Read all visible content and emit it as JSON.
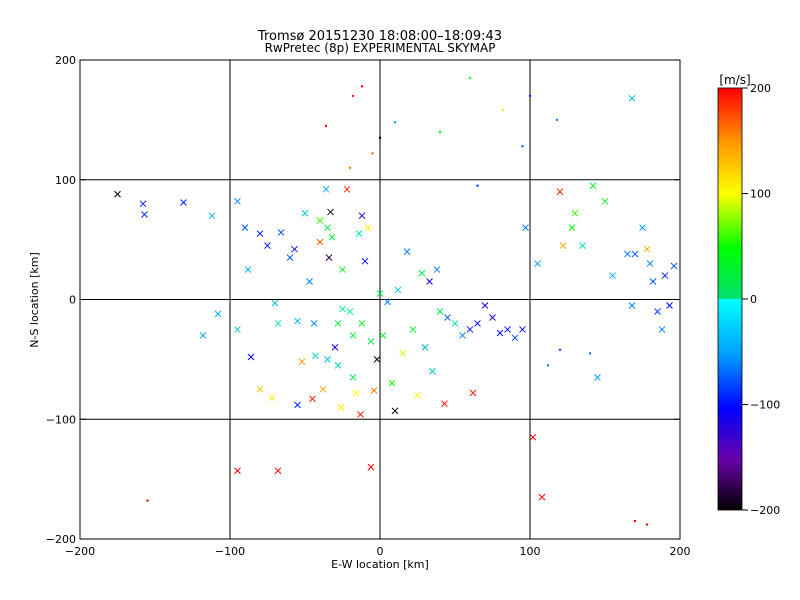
{
  "chart_data": {
    "type": "scatter",
    "title": "Tromsø 20151230 18:08:00–18:09:43",
    "subtitle": "RwPretec (8p) EXPERIMENTAL SKYMAP",
    "xlabel": "E-W location [km]",
    "ylabel": "N-S location [km]",
    "xlim": [
      -200,
      200
    ],
    "ylim": [
      -200,
      200
    ],
    "x_ticks": [
      -200,
      -100,
      0,
      100,
      200
    ],
    "y_ticks": [
      -200,
      -100,
      0,
      100,
      200
    ],
    "grid": true,
    "colorbar": {
      "unit_label": "[m/s]",
      "range": [
        -200,
        200
      ],
      "ticks": [
        200,
        100,
        0,
        -100,
        -200
      ]
    },
    "series": [
      {
        "marker": "x",
        "points": [
          [
            -175,
            88,
            -200
          ],
          [
            -158,
            80,
            -90
          ],
          [
            -157,
            71,
            -85
          ],
          [
            -131,
            81,
            -90
          ],
          [
            -112,
            70,
            -40
          ],
          [
            -95,
            82,
            -60
          ],
          [
            -90,
            60,
            -75
          ],
          [
            -88,
            25,
            -50
          ],
          [
            -80,
            55,
            -85
          ],
          [
            -75,
            45,
            -90
          ],
          [
            -70,
            -3,
            -30
          ],
          [
            -68,
            -20,
            -10
          ],
          [
            -66,
            56,
            -80
          ],
          [
            -60,
            35,
            -70
          ],
          [
            -57,
            42,
            -95
          ],
          [
            -55,
            -18,
            -40
          ],
          [
            -55,
            -88,
            -90
          ],
          [
            -52,
            -52,
            150
          ],
          [
            -50,
            72,
            -30
          ],
          [
            -47,
            15,
            -60
          ],
          [
            -45,
            -83,
            190
          ],
          [
            -43,
            -47,
            -20
          ],
          [
            -40,
            66,
            60
          ],
          [
            -40,
            48,
            170
          ],
          [
            -38,
            -75,
            150
          ],
          [
            -36,
            92,
            -45
          ],
          [
            -35,
            60,
            10
          ],
          [
            -34,
            35,
            -180
          ],
          [
            -33,
            73,
            -190
          ],
          [
            -32,
            52,
            20
          ],
          [
            -30,
            -40,
            -110
          ],
          [
            -28,
            -20,
            20
          ],
          [
            -26,
            -90,
            110
          ],
          [
            -25,
            25,
            30
          ],
          [
            -22,
            92,
            190
          ],
          [
            -20,
            -10,
            0
          ],
          [
            -18,
            -65,
            20
          ],
          [
            -16,
            -78,
            100
          ],
          [
            -14,
            55,
            -10
          ],
          [
            -13,
            -96,
            190
          ],
          [
            -12,
            70,
            -100
          ],
          [
            -10,
            32,
            -100
          ],
          [
            -8,
            60,
            110
          ],
          [
            -6,
            -140,
            200
          ],
          [
            -4,
            -76,
            160
          ],
          [
            -2,
            -50,
            -190
          ],
          [
            0,
            5,
            10
          ],
          [
            2,
            -30,
            30
          ],
          [
            5,
            -2,
            -60
          ],
          [
            8,
            -70,
            50
          ],
          [
            10,
            -93,
            -200
          ],
          [
            12,
            8,
            -30
          ],
          [
            15,
            -45,
            90
          ],
          [
            18,
            40,
            -60
          ],
          [
            22,
            -25,
            30
          ],
          [
            25,
            -80,
            100
          ],
          [
            28,
            22,
            20
          ],
          [
            30,
            -40,
            -40
          ],
          [
            33,
            15,
            -110
          ],
          [
            35,
            -60,
            -30
          ],
          [
            38,
            25,
            -60
          ],
          [
            40,
            -10,
            10
          ],
          [
            43,
            -87,
            200
          ],
          [
            45,
            -15,
            -70
          ],
          [
            50,
            -20,
            -20
          ],
          [
            55,
            -30,
            -60
          ],
          [
            60,
            -25,
            -90
          ],
          [
            62,
            -78,
            190
          ],
          [
            65,
            -20,
            -100
          ],
          [
            70,
            -5,
            -110
          ],
          [
            75,
            -15,
            -120
          ],
          [
            80,
            -28,
            -95
          ],
          [
            85,
            -25,
            -90
          ],
          [
            90,
            -32,
            -80
          ],
          [
            95,
            -25,
            -110
          ],
          [
            97,
            60,
            -60
          ],
          [
            102,
            -115,
            200
          ],
          [
            105,
            30,
            -50
          ],
          [
            108,
            -165,
            200
          ],
          [
            120,
            90,
            190
          ],
          [
            122,
            45,
            140
          ],
          [
            128,
            60,
            40
          ],
          [
            130,
            72,
            60
          ],
          [
            135,
            45,
            -20
          ],
          [
            142,
            95,
            40
          ],
          [
            145,
            -65,
            -50
          ],
          [
            150,
            82,
            30
          ],
          [
            155,
            20,
            -40
          ],
          [
            165,
            38,
            -60
          ],
          [
            168,
            168,
            -40
          ],
          [
            168,
            -5,
            -60
          ],
          [
            170,
            38,
            -70
          ],
          [
            175,
            60,
            -50
          ],
          [
            178,
            42,
            140
          ],
          [
            180,
            30,
            -60
          ],
          [
            182,
            15,
            -70
          ],
          [
            185,
            -10,
            -80
          ],
          [
            188,
            -25,
            -60
          ],
          [
            190,
            20,
            -90
          ],
          [
            193,
            -5,
            -100
          ],
          [
            196,
            28,
            -70
          ],
          [
            -118,
            -30,
            -50
          ],
          [
            -108,
            -12,
            -40
          ],
          [
            -95,
            -25,
            -30
          ],
          [
            -86,
            -48,
            -100
          ],
          [
            -80,
            -75,
            130
          ],
          [
            -72,
            -82,
            110
          ],
          [
            -95,
            -143,
            200
          ],
          [
            -68,
            -143,
            200
          ],
          [
            -35,
            -50,
            -30
          ],
          [
            -28,
            -55,
            -20
          ],
          [
            -18,
            -30,
            20
          ],
          [
            -12,
            -20,
            40
          ],
          [
            -6,
            -35,
            10
          ],
          [
            -25,
            -8,
            -10
          ],
          [
            -44,
            -20,
            -60
          ]
        ]
      },
      {
        "marker": "dot",
        "points": [
          [
            -155,
            -168,
            200
          ],
          [
            -36,
            145,
            200
          ],
          [
            -20,
            110,
            160
          ],
          [
            -18,
            170,
            190
          ],
          [
            -12,
            178,
            200
          ],
          [
            -5,
            122,
            170
          ],
          [
            0,
            135,
            -200
          ],
          [
            10,
            148,
            -50
          ],
          [
            40,
            140,
            40
          ],
          [
            60,
            185,
            30
          ],
          [
            82,
            158,
            110
          ],
          [
            100,
            170,
            -120
          ],
          [
            118,
            150,
            -60
          ],
          [
            95,
            128,
            -70
          ],
          [
            65,
            95,
            -80
          ],
          [
            170,
            -185,
            200
          ],
          [
            178,
            -188,
            200
          ],
          [
            140,
            -45,
            -70
          ],
          [
            120,
            -42,
            -80
          ],
          [
            112,
            -55,
            -60
          ]
        ]
      }
    ]
  }
}
